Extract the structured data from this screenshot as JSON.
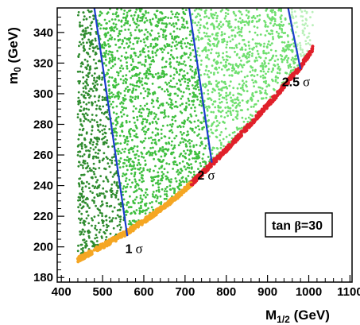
{
  "chart_data": {
    "type": "scatter",
    "title": "",
    "xlabel": "M",
    "xlabel_sub": "1/2",
    "xlabel_unit": " (GeV)",
    "ylabel": "m",
    "ylabel_sub": "0",
    "ylabel_unit": " (GeV)",
    "xlim": [
      390,
      1105
    ],
    "ylim": [
      177,
      356
    ],
    "x_ticks": [
      400,
      500,
      600,
      700,
      800,
      900,
      1000,
      1100
    ],
    "y_ticks": [
      180,
      200,
      220,
      240,
      260,
      280,
      300,
      320,
      340
    ],
    "grid": false,
    "annotation_box": {
      "prefix": "tan ",
      "symbol": "β",
      "suffix": "=30"
    },
    "regions": [
      {
        "name": "dark-green",
        "color": "#2e8b2e",
        "description_bound_x": [
          440,
          560
        ]
      },
      {
        "name": "medium-green",
        "color": "#3fbf3f",
        "description_bound_x": [
          560,
          765
        ]
      },
      {
        "name": "light-green",
        "color": "#6fdf6f",
        "description_bound_x": [
          765,
          980
        ]
      },
      {
        "name": "pale-green",
        "color": "#b8f0b8",
        "description_bound_x": [
          980,
          1010
        ]
      }
    ],
    "band_points": {
      "orange": {
        "color": "#f5a623",
        "x_range": [
          440,
          715
        ]
      },
      "red": {
        "color": "#e0202a",
        "x_range": [
          715,
          1010
        ]
      }
    },
    "boundary_edge": [
      [
        440,
        190
      ],
      [
        500,
        199
      ],
      [
        560,
        208
      ],
      [
        620,
        219
      ],
      [
        680,
        231
      ],
      [
        740,
        246
      ],
      [
        800,
        262
      ],
      [
        860,
        279
      ],
      [
        920,
        297
      ],
      [
        980,
        316
      ],
      [
        1010,
        328
      ]
    ],
    "sigma_lines": [
      {
        "label_num": "1",
        "label_sym": "σ",
        "color": "#1a3ccc",
        "from": [
          480,
          356
        ],
        "to": [
          560,
          207
        ]
      },
      {
        "label_num": "2",
        "label_sym": "σ",
        "color": "#1a3ccc",
        "from": [
          710,
          356
        ],
        "to": [
          765,
          255
        ]
      },
      {
        "label_num": "2.5",
        "label_sym": "σ",
        "color": "#1a3ccc",
        "from": [
          950,
          356
        ],
        "to": [
          980,
          316
        ]
      }
    ],
    "sigma_label_positions_data": [
      [
        555,
        196
      ],
      [
        730,
        244
      ],
      [
        935,
        305
      ]
    ]
  }
}
